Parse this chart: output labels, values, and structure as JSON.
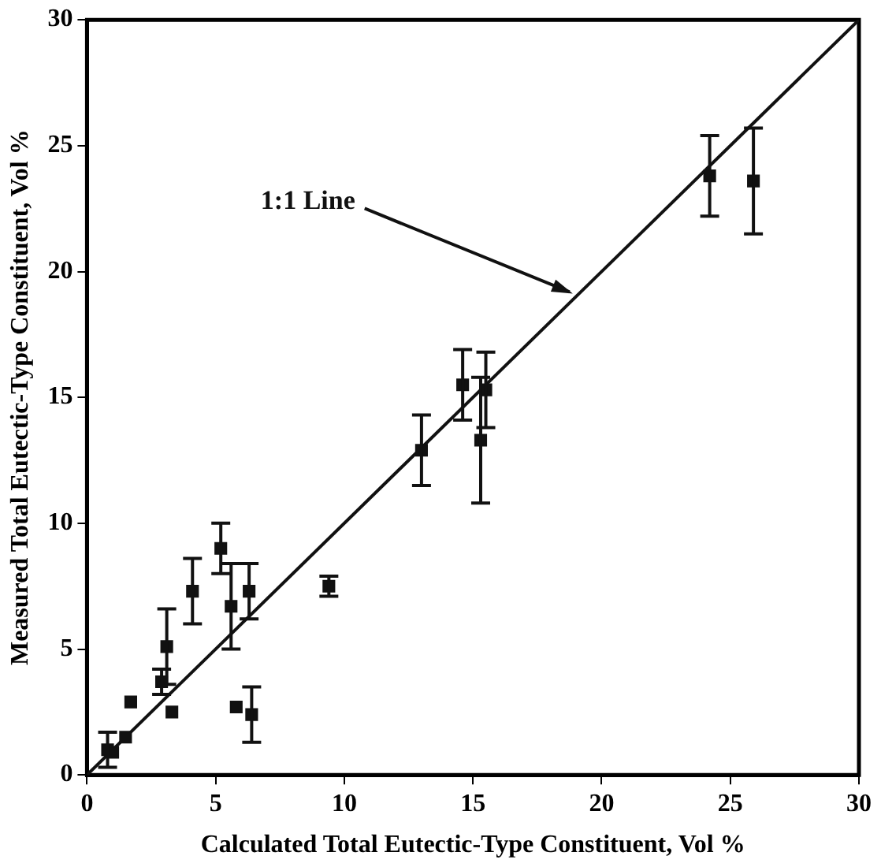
{
  "chart_data": {
    "type": "scatter",
    "xlabel": "Calculated Total Eutectic-Type Constituent, Vol %",
    "ylabel": "Measured Total Eutectic-Type Constituent, Vol %",
    "xlim": [
      0,
      30
    ],
    "ylim": [
      0,
      30
    ],
    "xticks": [
      0,
      5,
      10,
      15,
      20,
      25,
      30
    ],
    "yticks": [
      0,
      5,
      10,
      15,
      20,
      25,
      30
    ],
    "grid": false,
    "legend": false,
    "marker": "square",
    "annotations": [
      {
        "text": "1:1 Line",
        "x": 19,
        "y": 19
      }
    ],
    "series": [
      {
        "color": "#111111",
        "x": [
          0.8,
          1.0,
          1.5,
          1.7,
          2.9,
          3.1,
          3.3,
          4.1,
          5.2,
          5.6,
          5.8,
          6.3,
          6.4,
          9.4,
          13.0,
          14.6,
          15.3,
          15.5,
          24.2,
          25.9
        ],
        "values": [
          1.0,
          0.9,
          1.5,
          2.9,
          3.7,
          5.1,
          2.5,
          7.3,
          9.0,
          6.7,
          2.7,
          7.3,
          2.4,
          7.5,
          12.9,
          15.5,
          13.3,
          15.3,
          23.8,
          23.6
        ],
        "errors": [
          0.7,
          null,
          null,
          null,
          0.5,
          1.5,
          null,
          1.3,
          1.0,
          1.7,
          null,
          1.1,
          1.1,
          0.4,
          1.4,
          1.4,
          2.5,
          1.5,
          1.6,
          2.1
        ]
      },
      {
        "type": "line",
        "color": "#111111",
        "x": [
          0,
          30
        ],
        "values": [
          0,
          30
        ],
        "marker": "none",
        "line_style": "solid"
      }
    ]
  }
}
